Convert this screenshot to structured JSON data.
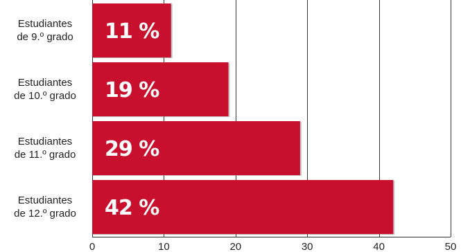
{
  "chart_data": {
    "type": "bar",
    "orientation": "horizontal",
    "title": "",
    "xlabel": "",
    "ylabel": "",
    "categories": [
      [
        "Estudiantes",
        "de 9.º grado"
      ],
      [
        "Estudiantes",
        "de 10.º grado"
      ],
      [
        "Estudiantes",
        "de 11.º grado"
      ],
      [
        "Estudiantes",
        "de 12.º grado"
      ]
    ],
    "values": [
      11,
      19,
      29,
      42
    ],
    "data_labels": [
      "11 %",
      "19 %",
      "29 %",
      "42 %"
    ],
    "xlim": [
      0,
      50
    ],
    "xticks": [
      0,
      10,
      20,
      30,
      40,
      50
    ],
    "tick_labels": [
      "0",
      "10",
      "20",
      "30",
      "40",
      "50"
    ],
    "grid": "vertical",
    "legend": "none",
    "bar_color": "#c8102e",
    "bar_shadow_color": "#7a7a7a",
    "grid_color": "#333333",
    "label_color": "#ffffff"
  }
}
